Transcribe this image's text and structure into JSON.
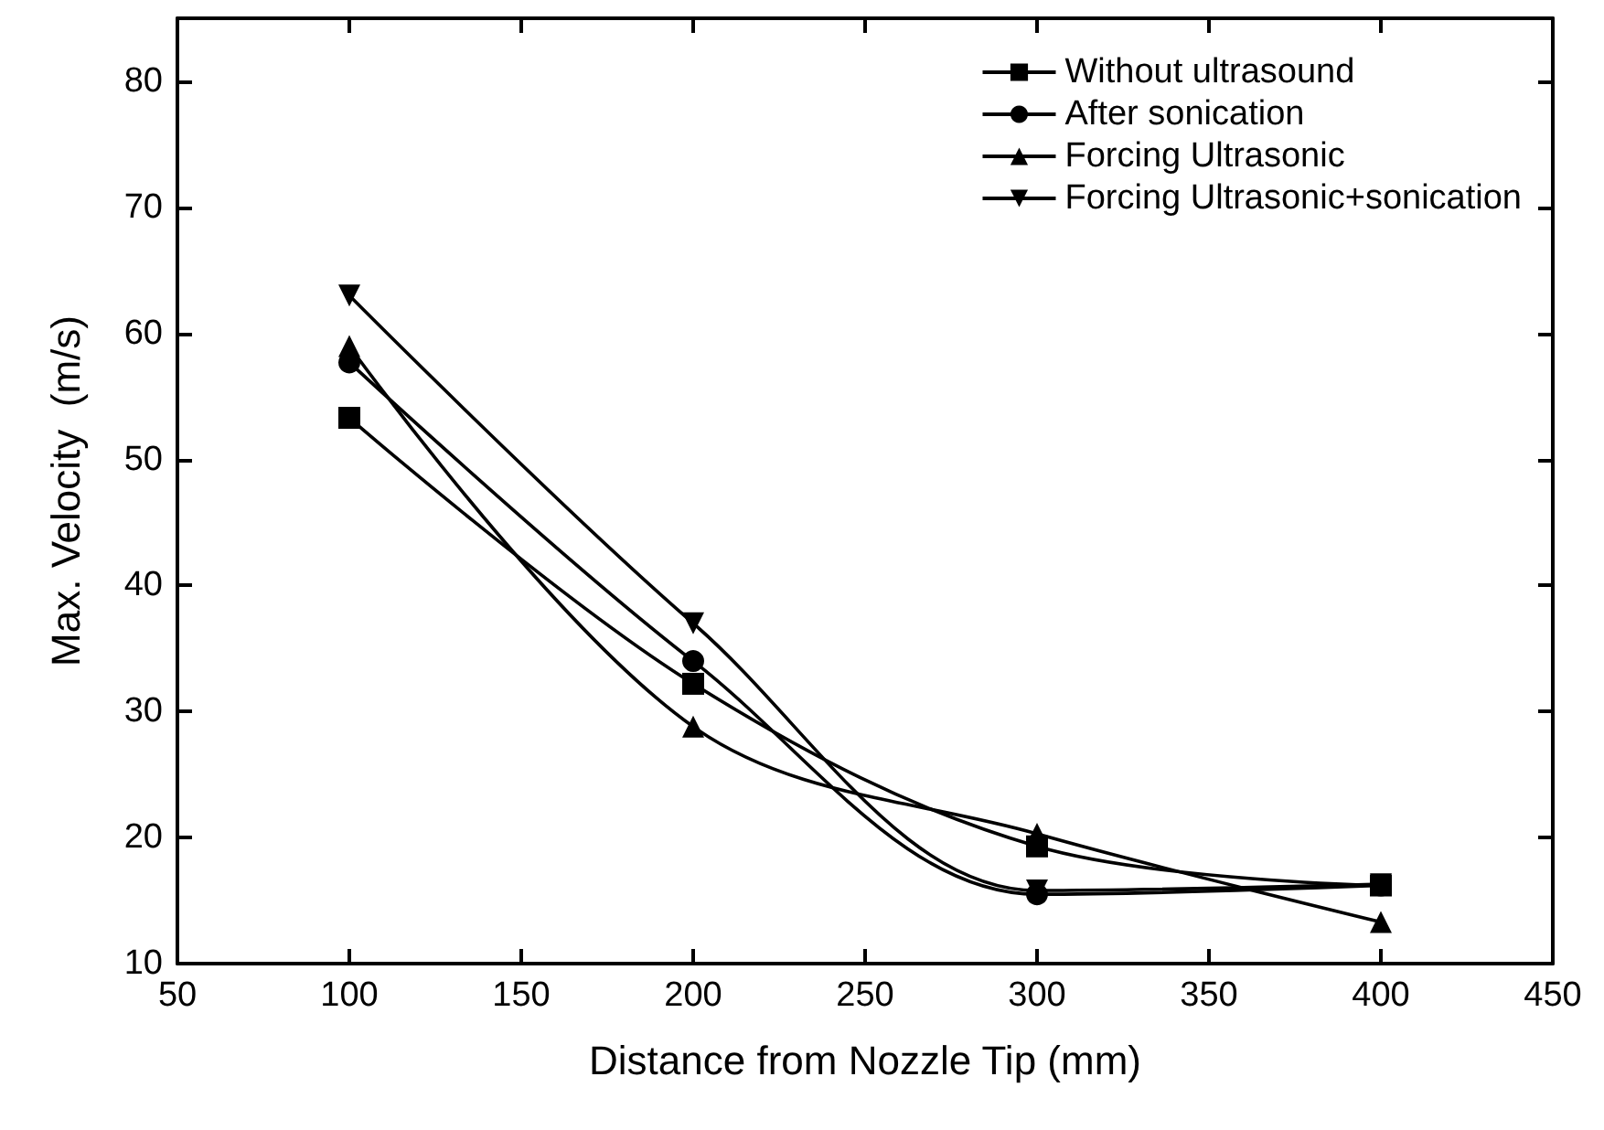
{
  "chart_data": {
    "type": "line",
    "xlabel": "Distance from Nozzle Tip (mm)",
    "ylabel": "Max. Velocity  (m/s)",
    "x": [
      100,
      200,
      300,
      400
    ],
    "series": [
      {
        "name": "Without ultrasound",
        "color": "#000000",
        "marker": "square",
        "values": [
          53.3,
          32.2,
          19.3,
          16.2
        ]
      },
      {
        "name": "After sonication",
        "color": "#000000",
        "marker": "circle",
        "values": [
          57.7,
          34,
          15.5,
          16.2
        ]
      },
      {
        "name": "Forcing Ultrasonic",
        "color": "#000000",
        "marker": "triangle",
        "values": [
          59,
          28.8,
          20.3,
          13.3
        ]
      },
      {
        "name": "Forcing Ultrasonic+sonication",
        "color": "#000000",
        "marker": "triangle-down",
        "values": [
          63,
          37,
          15.8,
          16.3
        ]
      }
    ],
    "xlim": [
      50,
      450
    ],
    "xticks": [
      50,
      100,
      150,
      200,
      250,
      300,
      350,
      400,
      450
    ],
    "ylim": [
      10,
      85
    ],
    "yticks": [
      10,
      20,
      30,
      40,
      50,
      60,
      70,
      80
    ],
    "grid": false,
    "legend": "top right",
    "line_style": "solid"
  }
}
